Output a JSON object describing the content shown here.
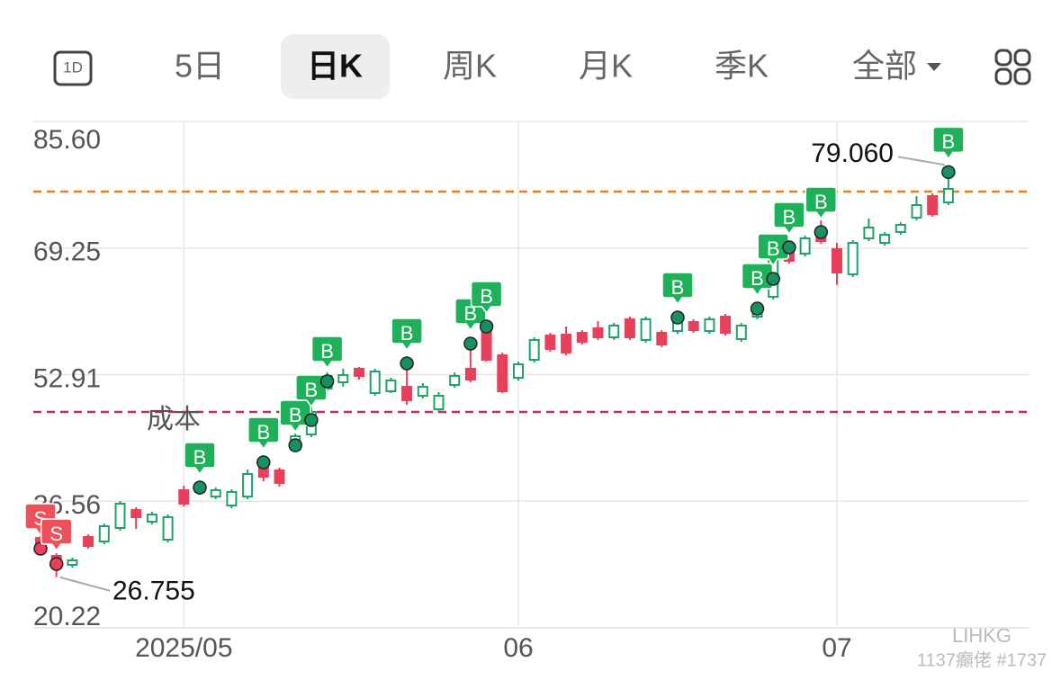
{
  "tabs": [
    "1D",
    "5日",
    "日K",
    "周K",
    "月K",
    "季K",
    "全部"
  ],
  "watermark": {
    "site": "LIHKG",
    "user": "1137癲佬 #1737"
  },
  "chart_data": {
    "type": "candlestick",
    "categories": [
      null,
      null,
      null,
      null,
      null,
      null,
      null,
      null,
      null,
      "2025/05",
      null,
      null,
      null,
      null,
      null,
      null,
      null,
      null,
      null,
      null,
      null,
      null,
      null,
      null,
      null,
      null,
      null,
      null,
      null,
      null,
      "06",
      null,
      null,
      null,
      null,
      null,
      null,
      null,
      null,
      null,
      null,
      null,
      null,
      null,
      null,
      null,
      null,
      null,
      null,
      null,
      "07",
      null,
      null,
      null,
      null,
      null,
      null,
      null
    ],
    "open": [
      31.83,
      29.51,
      28.35,
      31.95,
      31.37,
      33.11,
      35.43,
      33.92,
      31.6,
      37.99,
      37.76,
      37.17,
      36.01,
      37.17,
      41.47,
      40.54,
      43.21,
      45.19,
      51.11,
      51.92,
      53.67,
      50.53,
      50.76,
      51.34,
      50.18,
      48.44,
      51.57,
      53.67,
      58.89,
      55.41,
      52.5,
      54.83,
      57.96,
      58.08,
      58.31,
      58.89,
      57.73,
      60.05,
      57.38,
      58.31,
      58.54,
      59.7,
      58.54,
      60.4,
      57.5,
      60.4,
      62.96,
      69.11,
      68.53,
      71.66,
      69.11,
      65.86,
      70.5,
      69.92,
      71.32,
      73.18,
      75.96,
      75.15
    ],
    "high": [
      32.18,
      29.86,
      29.28,
      32.3,
      33.69,
      36.59,
      35.78,
      35.2,
      34.85,
      38.57,
      38.92,
      38.34,
      38.11,
      40.66,
      42.05,
      40.89,
      45.3,
      49.02,
      53.2,
      53.67,
      53.9,
      53.67,
      52.5,
      54.36,
      51.81,
      50.65,
      53.2,
      57.15,
      59.7,
      55.76,
      54.59,
      57.73,
      58.31,
      59.12,
      58.66,
      59.82,
      59.58,
      60.4,
      60.4,
      58.66,
      60.4,
      60.05,
      60.4,
      60.75,
      59.58,
      62.14,
      68.18,
      69.69,
      70.85,
      72.83,
      69.92,
      70.27,
      73.06,
      71.31,
      72.6,
      75.96,
      76.31,
      79.06
    ],
    "low": [
      29.86,
      26.755,
      28.0,
      30.44,
      31.02,
      32.76,
      32.99,
      33.57,
      31.25,
      35.9,
      37.41,
      36.83,
      35.66,
      36.83,
      39.15,
      38.45,
      42.87,
      44.84,
      50.76,
      51.34,
      52.27,
      50.18,
      50.53,
      49.02,
      49.83,
      48.09,
      51.23,
      51.92,
      54.59,
      50.53,
      52.15,
      54.48,
      55.87,
      55.41,
      56.8,
      57.38,
      57.38,
      57.38,
      57.03,
      56.45,
      58.19,
      58.31,
      58.19,
      57.96,
      57.15,
      60.05,
      62.61,
      67.25,
      68.18,
      69.8,
      64.51,
      65.51,
      70.15,
      69.57,
      70.97,
      72.83,
      73.29,
      74.8
    ],
    "close": [
      30.21,
      28.12,
      28.93,
      30.79,
      33.34,
      36.25,
      34.5,
      34.85,
      34.5,
      36.25,
      38.57,
      37.99,
      37.76,
      40.08,
      39.73,
      38.92,
      44.96,
      48.09,
      52.74,
      52.85,
      52.74,
      53.32,
      52.15,
      49.6,
      51.34,
      50.18,
      52.74,
      52.27,
      54.83,
      50.76,
      54.25,
      57.38,
      56.22,
      55.76,
      57.15,
      57.73,
      59.24,
      57.73,
      60.05,
      56.8,
      60.05,
      58.66,
      60.05,
      58.31,
      59.24,
      61.79,
      67.6,
      67.6,
      70.5,
      70.15,
      66.09,
      69.92,
      71.9,
      70.97,
      72.25,
      74.8,
      73.64,
      76.89
    ],
    "up_color": "#1fa266",
    "down_color": "#e8405a",
    "signals": [
      {
        "label": "B",
        "color": "#1fb15a",
        "values": [
          null,
          null,
          null,
          null,
          null,
          null,
          null,
          null,
          null,
          null,
          38.34,
          null,
          null,
          null,
          41.59,
          null,
          43.79,
          47.04,
          52.04,
          null,
          null,
          null,
          null,
          54.36,
          null,
          null,
          null,
          56.92,
          59.12,
          null,
          null,
          null,
          null,
          null,
          null,
          null,
          null,
          null,
          null,
          null,
          60.28,
          null,
          null,
          null,
          null,
          61.44,
          65.28,
          69.34,
          null,
          71.32,
          null,
          null,
          null,
          null,
          null,
          null,
          null,
          79.06
        ]
      },
      {
        "label": "S",
        "color": "#f0505a",
        "values": [
          30.44,
          28.47,
          null,
          null,
          null,
          null,
          null,
          null,
          null,
          null,
          null,
          null,
          null,
          null,
          null,
          null,
          null,
          null,
          null,
          null,
          null,
          null,
          null,
          null,
          null,
          null,
          null,
          null,
          null,
          null,
          null,
          null,
          null,
          null,
          null,
          null,
          null,
          null,
          null,
          null,
          null,
          null,
          null,
          null,
          null,
          null,
          null,
          null,
          null,
          null,
          null,
          null,
          null,
          null,
          null,
          null,
          null,
          null
        ]
      }
    ],
    "max_label": {
      "value": 79.06,
      "label": "79.060"
    },
    "min_label": {
      "value": 26.755,
      "label": "26.755"
    },
    "hlines": [
      {
        "value": 76.54,
        "color": "#ee7d12"
      },
      {
        "value": 48.09,
        "color": "#cc2a5e",
        "label": "成本"
      }
    ],
    "ylim": [
      20.22,
      85.6
    ],
    "yticks": [
      {
        "value": 85.6,
        "label": "85.60"
      },
      69.25,
      52.91,
      36.56,
      20.22
    ],
    "grid": true
  }
}
